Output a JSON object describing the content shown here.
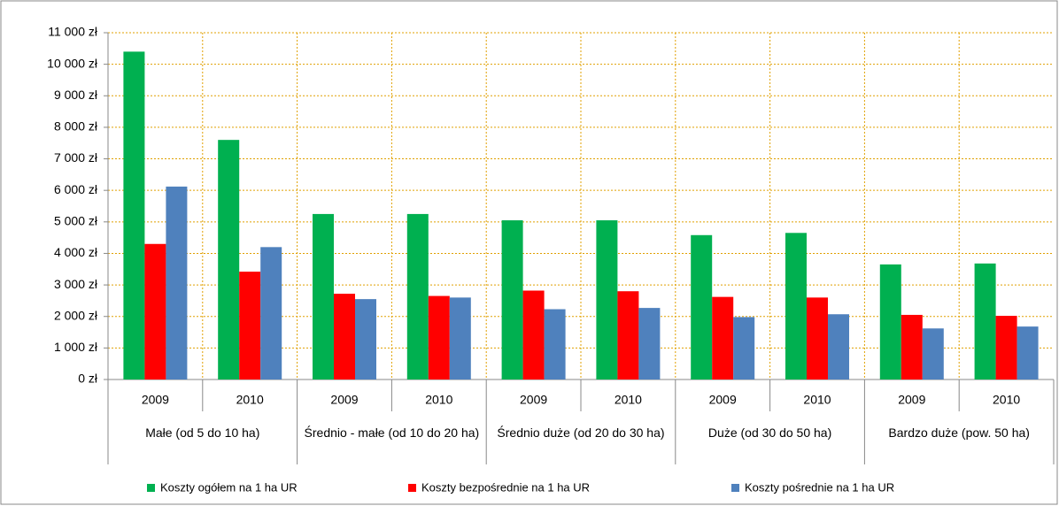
{
  "chart_data": {
    "type": "bar",
    "categories": [
      "2009",
      "2010",
      "2009",
      "2010",
      "2009",
      "2010",
      "2009",
      "2010",
      "2009",
      "2010"
    ],
    "groups": [
      "Małe (od 5 do 10 ha)",
      "Średnio - małe (od 10 do 20 ha)",
      "Średnio duże (od 20 do 30 ha)",
      "Duże (od 30 do 50 ha)",
      "Bardzo duże (pow. 50 ha)"
    ],
    "series": [
      {
        "name": "Koszty ogółem na 1 ha UR",
        "color": "#00b050",
        "values": [
          10400,
          7600,
          5250,
          5250,
          5050,
          5050,
          4580,
          4650,
          3650,
          3680
        ]
      },
      {
        "name": "Koszty bezpośrednie na 1 ha UR",
        "color": "#ff0000",
        "values": [
          4300,
          3420,
          2720,
          2650,
          2820,
          2800,
          2620,
          2600,
          2050,
          2020
        ]
      },
      {
        "name": "Koszty pośrednie na 1 ha UR",
        "color": "#4f81bd",
        "values": [
          6120,
          4200,
          2550,
          2600,
          2230,
          2270,
          1980,
          2070,
          1620,
          1680
        ]
      }
    ],
    "ylim": [
      0,
      11000
    ],
    "yticks": [
      {
        "value": 0,
        "label": "0 zł"
      },
      {
        "value": 1000,
        "label": "1 000 zł"
      },
      {
        "value": 2000,
        "label": "2 000 zł"
      },
      {
        "value": 3000,
        "label": "3 000 zł"
      },
      {
        "value": 4000,
        "label": "4 000 zł"
      },
      {
        "value": 5000,
        "label": "5 000 zł"
      },
      {
        "value": 6000,
        "label": "6 000 zł"
      },
      {
        "value": 7000,
        "label": "7 000 zł"
      },
      {
        "value": 8000,
        "label": "8 000 zł"
      },
      {
        "value": 9000,
        "label": "9 000 zł"
      },
      {
        "value": 10000,
        "label": "10 000 zł"
      },
      {
        "value": 11000,
        "label": "11 000 zł"
      }
    ],
    "grid": true,
    "grid_color": "#e0a000",
    "legend": "bottom"
  }
}
